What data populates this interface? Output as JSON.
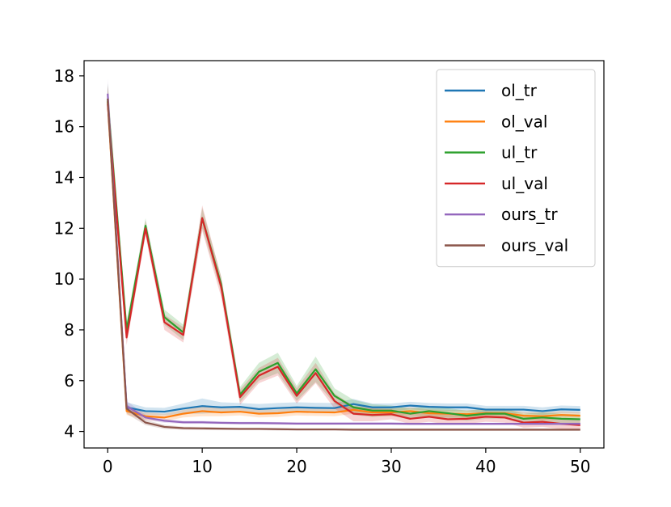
{
  "chart_data": {
    "type": "line",
    "title": "",
    "xlabel": "",
    "ylabel": "",
    "xlim": [
      -2.5,
      52.5
    ],
    "ylim": [
      3.35,
      18.6
    ],
    "xticks": [
      0,
      10,
      20,
      30,
      40,
      50
    ],
    "yticks": [
      4,
      6,
      8,
      10,
      12,
      14,
      16,
      18
    ],
    "grid": false,
    "legend_position": "top-right",
    "x": [
      0,
      2,
      4,
      6,
      8,
      10,
      12,
      14,
      16,
      18,
      20,
      22,
      24,
      26,
      28,
      30,
      32,
      34,
      36,
      38,
      40,
      42,
      44,
      46,
      48,
      50
    ],
    "series": [
      {
        "name": "ol_tr",
        "color": "#1f77b4",
        "values": [
          17.1,
          4.95,
          4.8,
          4.78,
          4.9,
          5.0,
          4.95,
          4.97,
          4.88,
          4.92,
          4.95,
          4.93,
          4.92,
          5.08,
          4.95,
          4.95,
          5.02,
          4.97,
          4.95,
          4.95,
          4.86,
          4.86,
          4.86,
          4.8,
          4.87,
          4.85
        ],
        "band": [
          0.6,
          0.2,
          0.15,
          0.15,
          0.2,
          0.3,
          0.2,
          0.15,
          0.2,
          0.2,
          0.2,
          0.2,
          0.2,
          0.2,
          0.15,
          0.15,
          0.15,
          0.15,
          0.15,
          0.15,
          0.15,
          0.15,
          0.15,
          0.15,
          0.15,
          0.15
        ]
      },
      {
        "name": "ol_val",
        "color": "#ff7f0e",
        "values": [
          17.0,
          4.8,
          4.6,
          4.55,
          4.7,
          4.8,
          4.75,
          4.78,
          4.7,
          4.72,
          4.78,
          4.76,
          4.75,
          4.85,
          4.75,
          4.75,
          4.8,
          4.72,
          4.7,
          4.68,
          4.72,
          4.72,
          4.62,
          4.6,
          4.65,
          4.62
        ],
        "band": [
          0.6,
          0.15,
          0.15,
          0.15,
          0.15,
          0.2,
          0.15,
          0.15,
          0.15,
          0.15,
          0.15,
          0.15,
          0.15,
          0.15,
          0.15,
          0.15,
          0.15,
          0.15,
          0.15,
          0.15,
          0.15,
          0.15,
          0.15,
          0.15,
          0.15,
          0.15
        ]
      },
      {
        "name": "ul_tr",
        "color": "#2ca02c",
        "values": [
          17.0,
          8.0,
          12.1,
          8.5,
          7.9,
          12.4,
          9.8,
          5.45,
          6.35,
          6.7,
          5.5,
          6.45,
          5.4,
          4.95,
          4.82,
          4.82,
          4.7,
          4.8,
          4.72,
          4.62,
          4.7,
          4.7,
          4.5,
          4.55,
          4.5,
          4.48
        ],
        "band": [
          0.7,
          0.3,
          0.3,
          0.3,
          0.3,
          0.4,
          0.3,
          0.3,
          0.35,
          0.4,
          0.3,
          0.5,
          0.3,
          0.3,
          0.25,
          0.2,
          0.2,
          0.2,
          0.2,
          0.2,
          0.2,
          0.2,
          0.2,
          0.2,
          0.2,
          0.2
        ]
      },
      {
        "name": "ul_val",
        "color": "#d62728",
        "values": [
          16.9,
          7.7,
          12.0,
          8.3,
          7.8,
          12.4,
          9.7,
          5.35,
          6.2,
          6.55,
          5.4,
          6.3,
          5.2,
          4.7,
          4.65,
          4.68,
          4.5,
          4.58,
          4.48,
          4.5,
          4.58,
          4.55,
          4.35,
          4.38,
          4.3,
          4.25
        ],
        "band": [
          0.7,
          0.3,
          0.3,
          0.3,
          0.3,
          0.5,
          0.4,
          0.3,
          0.3,
          0.35,
          0.3,
          0.4,
          0.3,
          0.3,
          0.25,
          0.2,
          0.2,
          0.2,
          0.2,
          0.2,
          0.2,
          0.2,
          0.2,
          0.2,
          0.2,
          0.2
        ]
      },
      {
        "name": "ours_tr",
        "color": "#9467bd",
        "values": [
          17.3,
          5.0,
          4.55,
          4.42,
          4.36,
          4.36,
          4.34,
          4.33,
          4.33,
          4.32,
          4.31,
          4.31,
          4.31,
          4.31,
          4.31,
          4.31,
          4.3,
          4.3,
          4.3,
          4.3,
          4.3,
          4.3,
          4.3,
          4.3,
          4.3,
          4.3
        ],
        "band": [
          0.6,
          0.2,
          0.1,
          0.08,
          0.06,
          0.06,
          0.05,
          0.05,
          0.05,
          0.05,
          0.05,
          0.05,
          0.05,
          0.05,
          0.05,
          0.05,
          0.05,
          0.05,
          0.05,
          0.05,
          0.05,
          0.05,
          0.05,
          0.05,
          0.05,
          0.05
        ]
      },
      {
        "name": "ours_val",
        "color": "#8c564b",
        "values": [
          17.1,
          4.9,
          4.35,
          4.18,
          4.13,
          4.12,
          4.11,
          4.1,
          4.1,
          4.09,
          4.08,
          4.08,
          4.08,
          4.07,
          4.07,
          4.07,
          4.07,
          4.07,
          4.07,
          4.07,
          4.07,
          4.07,
          4.07,
          4.07,
          4.07,
          4.07
        ],
        "band": [
          0.6,
          0.2,
          0.1,
          0.08,
          0.06,
          0.06,
          0.05,
          0.05,
          0.05,
          0.05,
          0.05,
          0.05,
          0.05,
          0.05,
          0.05,
          0.05,
          0.05,
          0.05,
          0.05,
          0.05,
          0.05,
          0.05,
          0.05,
          0.05,
          0.05,
          0.05
        ]
      }
    ]
  }
}
